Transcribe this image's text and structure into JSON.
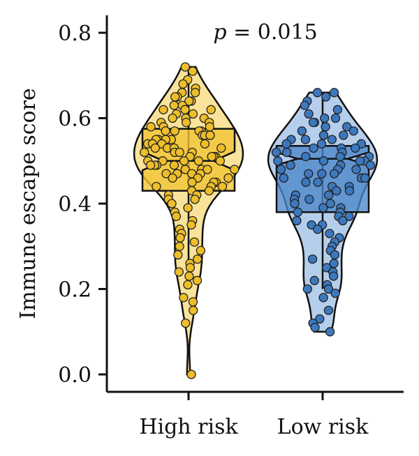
{
  "chart_data": {
    "type": "violin-box-jitter",
    "title": "",
    "xlabel": "",
    "ylabel": "Immune escape score",
    "ylim": [
      0.0,
      0.8
    ],
    "yticks": [
      "0.0",
      "0.2",
      "0.4",
      "0.6",
      "0.8"
    ],
    "annotation": {
      "italic": "p",
      "text": " = 0.015"
    },
    "categories": [
      "High risk",
      "Low risk"
    ],
    "colors": {
      "High risk": {
        "fill": "#F2C431",
        "light": "#F8DE8A",
        "point": "#EDBE2A"
      },
      "Low risk": {
        "fill": "#4A86C9",
        "light": "#A8C6E8",
        "point": "#3C78BE"
      }
    },
    "groups": [
      {
        "name": "High risk",
        "box": {
          "q1": 0.43,
          "median": 0.5,
          "q3": 0.575,
          "notch_low": 0.478,
          "notch_high": 0.522
        },
        "whisker": [
          0.22,
          0.72
        ],
        "violin_range": [
          0.0,
          0.72
        ],
        "points": [
          0.72,
          0.71,
          0.69,
          0.68,
          0.67,
          0.66,
          0.66,
          0.65,
          0.65,
          0.64,
          0.64,
          0.63,
          0.63,
          0.62,
          0.62,
          0.62,
          0.61,
          0.61,
          0.6,
          0.6,
          0.6,
          0.59,
          0.59,
          0.59,
          0.58,
          0.58,
          0.58,
          0.57,
          0.57,
          0.57,
          0.57,
          0.56,
          0.56,
          0.56,
          0.56,
          0.55,
          0.55,
          0.55,
          0.55,
          0.54,
          0.54,
          0.54,
          0.54,
          0.53,
          0.53,
          0.53,
          0.53,
          0.52,
          0.52,
          0.52,
          0.52,
          0.51,
          0.51,
          0.51,
          0.51,
          0.5,
          0.5,
          0.5,
          0.5,
          0.5,
          0.49,
          0.49,
          0.49,
          0.49,
          0.48,
          0.48,
          0.48,
          0.48,
          0.47,
          0.47,
          0.47,
          0.47,
          0.46,
          0.46,
          0.46,
          0.45,
          0.45,
          0.45,
          0.44,
          0.44,
          0.44,
          0.43,
          0.43,
          0.42,
          0.42,
          0.41,
          0.41,
          0.4,
          0.39,
          0.38,
          0.37,
          0.36,
          0.35,
          0.34,
          0.33,
          0.32,
          0.31,
          0.3,
          0.29,
          0.28,
          0.27,
          0.26,
          0.25,
          0.24,
          0.23,
          0.22,
          0.21,
          0.18,
          0.17,
          0.15,
          0.12,
          0.0
        ]
      },
      {
        "name": "Low risk",
        "box": {
          "q1": 0.38,
          "median": 0.505,
          "q3": 0.535,
          "notch_low": 0.49,
          "notch_high": 0.52
        },
        "whisker": [
          0.2,
          0.66
        ],
        "violin_range": [
          0.1,
          0.66
        ],
        "points": [
          0.66,
          0.66,
          0.65,
          0.64,
          0.63,
          0.62,
          0.61,
          0.6,
          0.6,
          0.59,
          0.59,
          0.58,
          0.58,
          0.57,
          0.57,
          0.56,
          0.56,
          0.55,
          0.55,
          0.55,
          0.54,
          0.54,
          0.54,
          0.53,
          0.53,
          0.53,
          0.52,
          0.52,
          0.52,
          0.51,
          0.51,
          0.51,
          0.5,
          0.5,
          0.5,
          0.5,
          0.49,
          0.49,
          0.49,
          0.48,
          0.48,
          0.48,
          0.47,
          0.47,
          0.47,
          0.46,
          0.46,
          0.46,
          0.45,
          0.45,
          0.44,
          0.44,
          0.43,
          0.43,
          0.42,
          0.42,
          0.41,
          0.41,
          0.4,
          0.4,
          0.39,
          0.39,
          0.38,
          0.38,
          0.37,
          0.37,
          0.36,
          0.36,
          0.35,
          0.35,
          0.34,
          0.33,
          0.32,
          0.31,
          0.3,
          0.29,
          0.28,
          0.27,
          0.26,
          0.25,
          0.24,
          0.23,
          0.22,
          0.21,
          0.2,
          0.2,
          0.19,
          0.18,
          0.15,
          0.13,
          0.12,
          0.11,
          0.1
        ]
      }
    ]
  }
}
